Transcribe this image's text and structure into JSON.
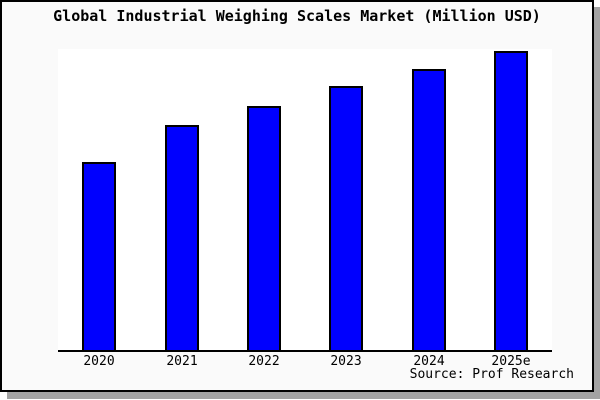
{
  "chart_data": {
    "type": "bar",
    "title": "Global Industrial Weighing Scales Market (Million USD)",
    "categories": [
      "2020",
      "2021",
      "2022",
      "2023",
      "2024",
      "2025e"
    ],
    "values": [
      62.9,
      75.3,
      81.6,
      88.3,
      94.0,
      100.0
    ],
    "values_note": "No y-axis ticks or data labels are shown in the image; values are relative bar heights normalized so that 2025e = 100",
    "xlabel": "",
    "ylabel": "",
    "ylim": [
      0,
      100.7
    ],
    "grid": false,
    "legend": false,
    "bar_color": "#0000fe",
    "bar_border_color": "#000000"
  },
  "source": {
    "text": "Source: Prof Research"
  },
  "colors": {
    "outer_background": "#fafafa",
    "plot_background": "#ffffff",
    "frame_border": "#000000",
    "drop_shadow": "#a3a3a3",
    "text": "#000000"
  }
}
